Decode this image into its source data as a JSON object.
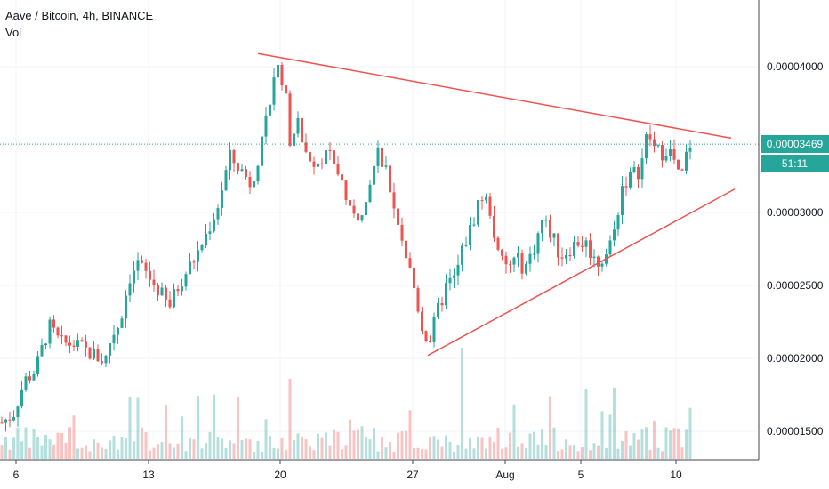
{
  "header": {
    "symbol_title": "Aave / Bitcoin, 4h, BINANCE",
    "indicator_label": "Vol"
  },
  "price_axis": {
    "last_price": "0.00003469",
    "countdown": "51:11"
  },
  "colors": {
    "up": "#26a69a",
    "down": "#ef5350",
    "trendline": "#ef5350",
    "last_price": "#26a69a",
    "axis_text": "#131722",
    "grid": "#f0f3fa"
  },
  "chart_data": {
    "type": "candlestick",
    "title": "Aave / Bitcoin, 4h, BINANCE",
    "interval": "4h",
    "exchange": "BINANCE",
    "y_ticks": [
      "0.00004000",
      "0.00003000",
      "0.00002500",
      "0.00002000",
      "0.00001500"
    ],
    "y_tick_values": [
      4e-05,
      3e-05,
      2.5e-05,
      2e-05,
      1.5e-05
    ],
    "x_ticks": [
      "6",
      "13",
      "20",
      "27",
      "Aug",
      "5",
      "10"
    ],
    "last_price": 3.469e-05,
    "price_range": [
      1.35e-05,
      4.45e-05
    ],
    "grid": true,
    "volume_pane": true,
    "close_path": [
      [
        0,
        1.55e-05
      ],
      [
        15,
        1.62e-05
      ],
      [
        28,
        1.85e-05
      ],
      [
        40,
        1.92e-05
      ],
      [
        55,
        2.22e-05
      ],
      [
        68,
        2.1e-05
      ],
      [
        82,
        2.1e-05
      ],
      [
        100,
        2.04e-05
      ],
      [
        118,
        1.98e-05
      ],
      [
        125,
        2.15e-05
      ],
      [
        135,
        2.25e-05
      ],
      [
        145,
        2.55e-05
      ],
      [
        155,
        2.65e-05
      ],
      [
        168,
        2.55e-05
      ],
      [
        180,
        2.45e-05
      ],
      [
        190,
        2.35e-05
      ],
      [
        202,
        2.52e-05
      ],
      [
        212,
        2.62e-05
      ],
      [
        222,
        2.72e-05
      ],
      [
        232,
        2.85e-05
      ],
      [
        245,
        3.05e-05
      ],
      [
        258,
        3.38e-05
      ],
      [
        270,
        3.3e-05
      ],
      [
        282,
        3.2e-05
      ],
      [
        294,
        3.45e-05
      ],
      [
        302,
        3.7e-05
      ],
      [
        308,
        3.95e-05
      ],
      [
        314,
        4e-05
      ],
      [
        320,
        3.85e-05
      ],
      [
        326,
        3.5e-05
      ],
      [
        335,
        3.6e-05
      ],
      [
        345,
        3.4e-05
      ],
      [
        355,
        3.35e-05
      ],
      [
        365,
        3.4e-05
      ],
      [
        375,
        3.35e-05
      ],
      [
        385,
        3.2e-05
      ],
      [
        395,
        2.95e-05
      ],
      [
        405,
        3e-05
      ],
      [
        415,
        3.2e-05
      ],
      [
        425,
        3.4e-05
      ],
      [
        435,
        3.25e-05
      ],
      [
        445,
        3e-05
      ],
      [
        455,
        2.75e-05
      ],
      [
        465,
        2.5e-05
      ],
      [
        475,
        2.2e-05
      ],
      [
        483,
        2.12e-05
      ],
      [
        492,
        2.32e-05
      ],
      [
        502,
        2.5e-05
      ],
      [
        512,
        2.55e-05
      ],
      [
        520,
        2.75e-05
      ],
      [
        530,
        2.9e-05
      ],
      [
        540,
        3.12e-05
      ],
      [
        550,
        3.05e-05
      ],
      [
        560,
        2.7e-05
      ],
      [
        570,
        2.62e-05
      ],
      [
        580,
        2.68e-05
      ],
      [
        590,
        2.62e-05
      ],
      [
        600,
        2.75e-05
      ],
      [
        610,
        2.95e-05
      ],
      [
        620,
        2.85e-05
      ],
      [
        630,
        2.7e-05
      ],
      [
        640,
        2.75e-05
      ],
      [
        650,
        2.8e-05
      ],
      [
        660,
        2.78e-05
      ],
      [
        670,
        2.65e-05
      ],
      [
        680,
        2.7e-05
      ],
      [
        690,
        2.85e-05
      ],
      [
        700,
        3.2e-05
      ],
      [
        710,
        3.25e-05
      ],
      [
        720,
        3.3e-05
      ],
      [
        728,
        3.55e-05
      ],
      [
        735,
        3.45e-05
      ],
      [
        742,
        3.4e-05
      ],
      [
        750,
        3.45e-05
      ],
      [
        758,
        3.35e-05
      ],
      [
        765,
        3.2e-05
      ],
      [
        772,
        3.4e-05
      ],
      [
        776,
        3.469e-05
      ]
    ],
    "trendlines": [
      {
        "from_x": 290,
        "from_price": 4.09e-05,
        "to_x": 822,
        "to_price": 3.51e-05
      },
      {
        "from_x": 481,
        "from_price": 2.02e-05,
        "to_x": 826,
        "to_price": 3.16e-05
      }
    ]
  }
}
